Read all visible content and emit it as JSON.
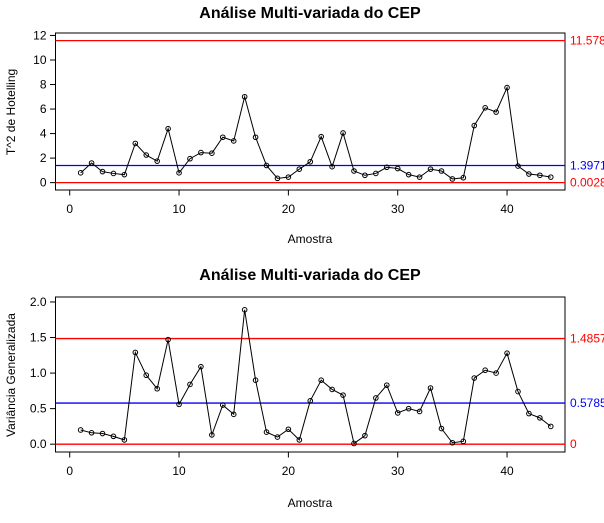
{
  "figure": {
    "background": "#ffffff",
    "axis_color": "#000000",
    "series_color": "#000000",
    "ucl_color": "#ff0000",
    "cl_color": "#0000ff"
  },
  "chart_data": [
    {
      "type": "line",
      "title": "Análise Multi-variada do CEP",
      "xlabel": "Amostra",
      "ylabel": "T^2 de Hotelling",
      "marker": "open-circle",
      "line_color": "#000000",
      "grid": false,
      "x_start": 1,
      "values": [
        0.8,
        1.6,
        0.9,
        0.75,
        0.65,
        3.2,
        2.25,
        1.75,
        4.4,
        0.8,
        1.95,
        2.45,
        2.4,
        3.7,
        3.4,
        7.0,
        3.7,
        1.4,
        0.35,
        0.45,
        1.1,
        1.7,
        3.75,
        1.3,
        4.05,
        0.95,
        0.6,
        0.75,
        1.25,
        1.15,
        0.65,
        0.45,
        1.1,
        0.95,
        0.3,
        0.4,
        4.65,
        6.1,
        5.75,
        7.75,
        1.35,
        0.7,
        0.6,
        0.45
      ],
      "xlim": [
        -1.3,
        45.3
      ],
      "ylim": [
        -0.6,
        12.2
      ],
      "x_tick_values": [
        0,
        10,
        20,
        30,
        40
      ],
      "x_tick_labels": [
        "0",
        "10",
        "20",
        "30",
        "40"
      ],
      "y_tick_values": [
        0,
        2,
        4,
        6,
        8,
        10,
        12
      ],
      "y_tick_labels": [
        "0",
        "2",
        "4",
        "6",
        "8",
        "10",
        "12"
      ],
      "control_lines": [
        {
          "name": "UCL",
          "value": 11.578,
          "label": "11.578",
          "color": "#ff0000"
        },
        {
          "name": "CL",
          "value": 1.3971,
          "label": "1.3971",
          "color": "#0000ff"
        },
        {
          "name": "LCL",
          "value": 0.0028,
          "label": "0.0028",
          "color": "#ff0000"
        }
      ],
      "legend": null
    },
    {
      "type": "line",
      "title": "Análise Multi-variada do CEP",
      "xlabel": "Amostra",
      "ylabel": "Variância Generalizada",
      "marker": "open-circle",
      "line_color": "#000000",
      "grid": false,
      "x_start": 1,
      "values": [
        0.2,
        0.16,
        0.15,
        0.11,
        0.06,
        1.29,
        0.97,
        0.78,
        1.47,
        0.56,
        0.84,
        1.09,
        0.13,
        0.55,
        0.42,
        1.89,
        0.9,
        0.17,
        0.1,
        0.21,
        0.06,
        0.61,
        0.9,
        0.77,
        0.69,
        0.01,
        0.12,
        0.65,
        0.83,
        0.44,
        0.5,
        0.46,
        0.79,
        0.22,
        0.02,
        0.04,
        0.93,
        1.04,
        1.0,
        1.28,
        0.74,
        0.43,
        0.37,
        0.25
      ],
      "xlim": [
        -1.3,
        45.3
      ],
      "ylim": [
        -0.11,
        2.07
      ],
      "x_tick_values": [
        0,
        10,
        20,
        30,
        40
      ],
      "x_tick_labels": [
        "0",
        "10",
        "20",
        "30",
        "40"
      ],
      "y_tick_values": [
        0.0,
        0.5,
        1.0,
        1.5,
        2.0
      ],
      "y_tick_labels": [
        "0.0",
        "0.5",
        "1.0",
        "1.5",
        "2.0"
      ],
      "control_lines": [
        {
          "name": "UCL",
          "value": 1.4857,
          "label": "1.4857",
          "color": "#ff0000"
        },
        {
          "name": "CL",
          "value": 0.5785,
          "label": "0.5785",
          "color": "#0000ff"
        },
        {
          "name": "LCL",
          "value": 0.0,
          "label": "0",
          "color": "#ff0000"
        }
      ],
      "legend": null
    }
  ]
}
